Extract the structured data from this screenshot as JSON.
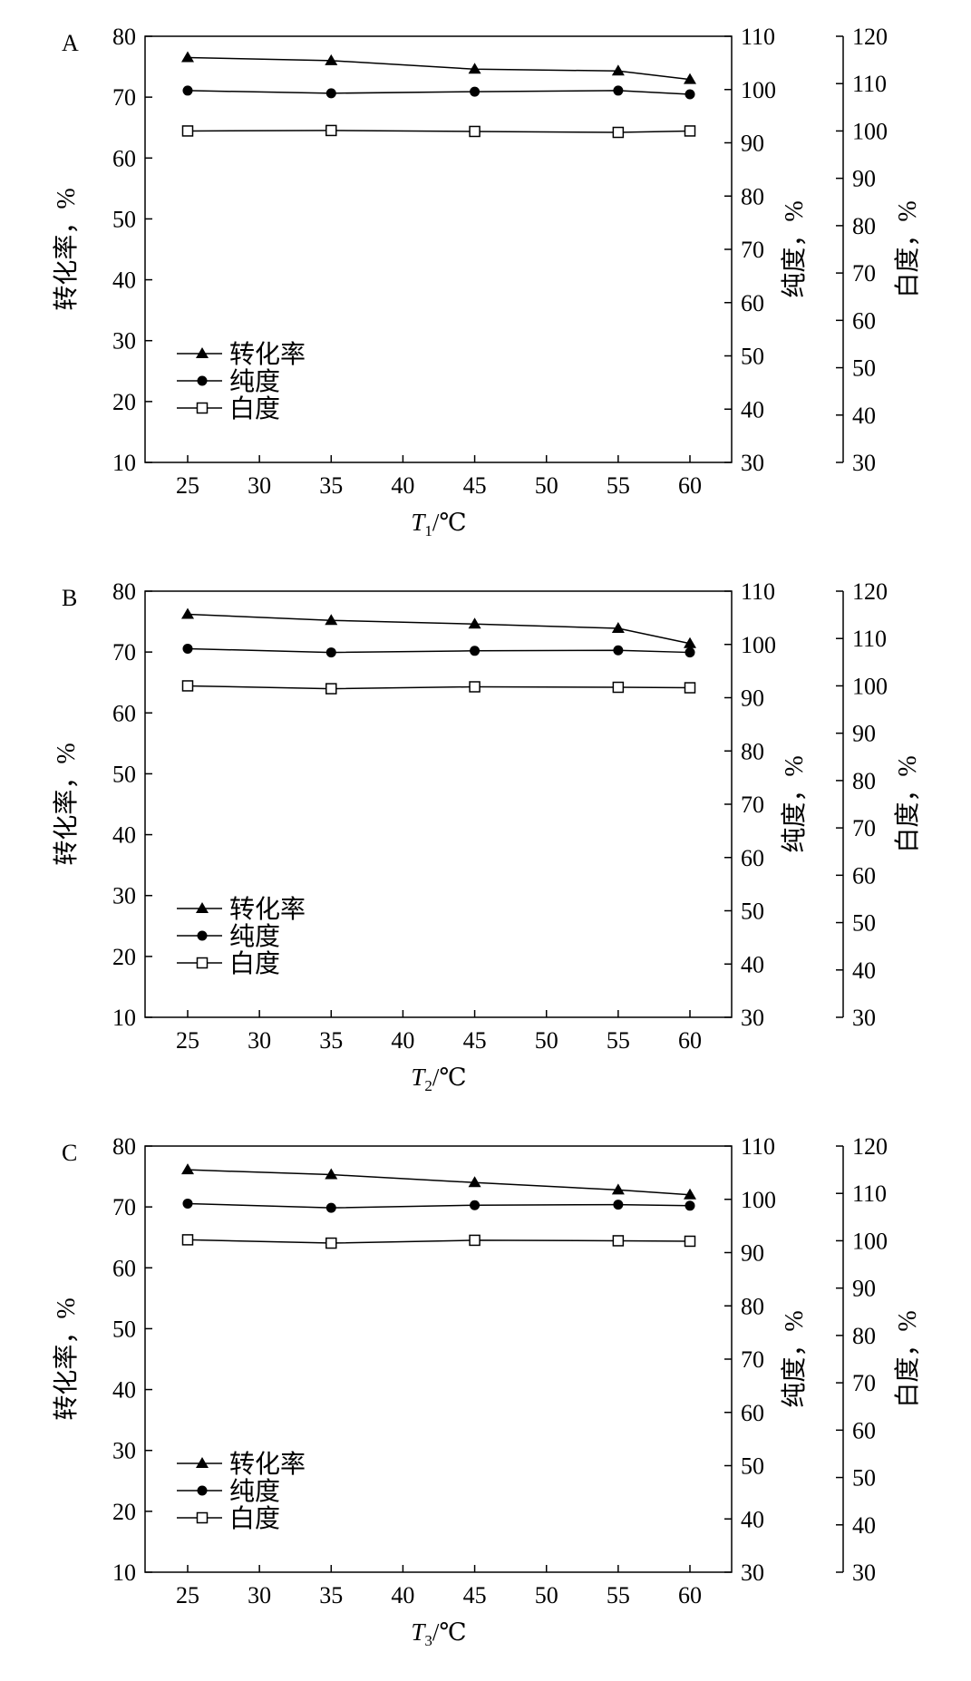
{
  "chart_data": [
    {
      "type": "line",
      "panel_label": "A",
      "x": [
        25,
        35,
        45,
        55,
        60
      ],
      "xticks": [
        25,
        30,
        35,
        40,
        45,
        50,
        55,
        60
      ],
      "xlabel_italic": "T",
      "xlabel_sub": "1",
      "xlabel_unit": "/℃",
      "y_axes": [
        {
          "label": "转化率，%",
          "lim": [
            10,
            80
          ],
          "ticks": [
            10,
            20,
            30,
            40,
            50,
            60,
            70,
            80
          ],
          "position": "left"
        },
        {
          "label": "纯度，%",
          "lim": [
            30,
            110
          ],
          "ticks": [
            30,
            40,
            50,
            60,
            70,
            80,
            90,
            100,
            110
          ],
          "position": "right-inner"
        },
        {
          "label": "白度，%",
          "lim": [
            30,
            120
          ],
          "ticks": [
            30,
            40,
            50,
            60,
            70,
            80,
            90,
            100,
            110,
            120
          ],
          "position": "right-outer"
        }
      ],
      "series": [
        {
          "name": "转化率",
          "axis": 0,
          "marker": "filled-triangle",
          "values": [
            76.5,
            76.0,
            74.6,
            74.3,
            72.9
          ]
        },
        {
          "name": "纯度",
          "axis": 1,
          "marker": "filled-circle",
          "values": [
            99.8,
            99.3,
            99.6,
            99.8,
            99.1
          ]
        },
        {
          "name": "白度",
          "axis": 2,
          "marker": "open-square",
          "values": [
            100.0,
            100.1,
            99.9,
            99.7,
            100.0
          ]
        }
      ],
      "legend_position": "lower-left",
      "grid": false
    },
    {
      "type": "line",
      "panel_label": "B",
      "x": [
        25,
        35,
        45,
        55,
        60
      ],
      "xticks": [
        25,
        30,
        35,
        40,
        45,
        50,
        55,
        60
      ],
      "xlabel_italic": "T",
      "xlabel_sub": "2",
      "xlabel_unit": "/℃",
      "y_axes": [
        {
          "label": "转化率，%",
          "lim": [
            10,
            80
          ],
          "ticks": [
            10,
            20,
            30,
            40,
            50,
            60,
            70,
            80
          ],
          "position": "left"
        },
        {
          "label": "纯度，%",
          "lim": [
            30,
            110
          ],
          "ticks": [
            30,
            40,
            50,
            60,
            70,
            80,
            90,
            100,
            110
          ],
          "position": "right-inner"
        },
        {
          "label": "白度，%",
          "lim": [
            30,
            120
          ],
          "ticks": [
            30,
            40,
            50,
            60,
            70,
            80,
            90,
            100,
            110,
            120
          ],
          "position": "right-outer"
        }
      ],
      "series": [
        {
          "name": "转化率",
          "axis": 0,
          "marker": "filled-triangle",
          "values": [
            76.2,
            75.2,
            74.6,
            73.9,
            71.4
          ]
        },
        {
          "name": "纯度",
          "axis": 1,
          "marker": "filled-circle",
          "values": [
            99.2,
            98.5,
            98.8,
            98.9,
            98.5
          ]
        },
        {
          "name": "白度",
          "axis": 2,
          "marker": "open-square",
          "values": [
            100.0,
            99.4,
            99.8,
            99.7,
            99.6
          ]
        }
      ],
      "legend_position": "lower-left",
      "grid": false
    },
    {
      "type": "line",
      "panel_label": "C",
      "x": [
        25,
        35,
        45,
        55,
        60
      ],
      "xticks": [
        25,
        30,
        35,
        40,
        45,
        50,
        55,
        60
      ],
      "xlabel_italic": "T",
      "xlabel_sub": "3",
      "xlabel_unit": "/℃",
      "y_axes": [
        {
          "label": "转化率，%",
          "lim": [
            10,
            80
          ],
          "ticks": [
            10,
            20,
            30,
            40,
            50,
            60,
            70,
            80
          ],
          "position": "left"
        },
        {
          "label": "纯度，%",
          "lim": [
            30,
            110
          ],
          "ticks": [
            30,
            40,
            50,
            60,
            70,
            80,
            90,
            100,
            110
          ],
          "position": "right-inner"
        },
        {
          "label": "白度，%",
          "lim": [
            30,
            120
          ],
          "ticks": [
            30,
            40,
            50,
            60,
            70,
            80,
            90,
            100,
            110,
            120
          ],
          "position": "right-outer"
        }
      ],
      "series": [
        {
          "name": "转化率",
          "axis": 0,
          "marker": "filled-triangle",
          "values": [
            76.1,
            75.3,
            74.0,
            72.8,
            72.0
          ]
        },
        {
          "name": "纯度",
          "axis": 1,
          "marker": "filled-circle",
          "values": [
            99.2,
            98.4,
            98.9,
            99.0,
            98.8
          ]
        },
        {
          "name": "白度",
          "axis": 2,
          "marker": "open-square",
          "values": [
            100.2,
            99.5,
            100.1,
            100.0,
            99.9
          ]
        }
      ],
      "legend_position": "lower-left",
      "grid": false
    }
  ]
}
